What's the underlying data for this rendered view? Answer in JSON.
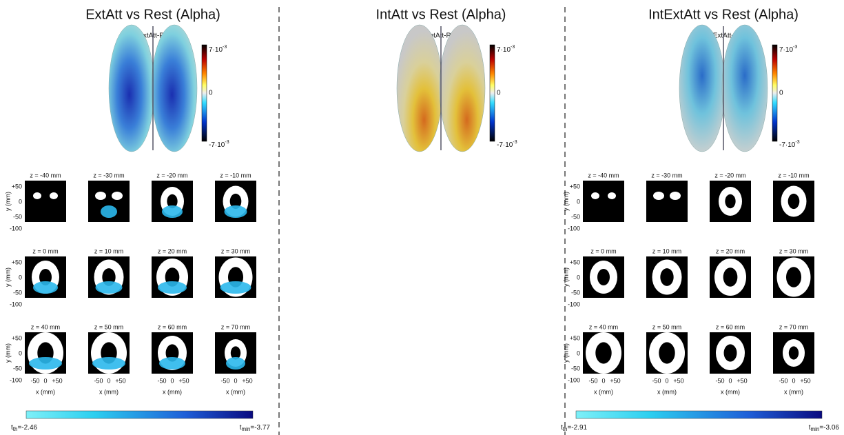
{
  "panels": [
    {
      "title": "ExtAtt vs Rest (Alpha)",
      "map_label": "Δ (ExtAtt-Rest)",
      "colorbar_ticks": [
        {
          "base": "7·10",
          "exp": "-3"
        },
        "0",
        {
          "base": "-7·10",
          "exp": "-3"
        }
      ],
      "slices": [
        "z = -40 mm",
        "z = -30 mm",
        "z = -20 mm",
        "z = -10 mm",
        "z = 0 mm",
        "z = 10 mm",
        "z = 20 mm",
        "z = 30 mm",
        "z = 40 mm",
        "z = 50 mm",
        "z = 60 mm",
        "z = 70 mm"
      ],
      "y_ticks": [
        "+50",
        "0",
        "-50",
        "-100"
      ],
      "y_label": "y (mm)",
      "x_ticks": [
        "-50",
        "0",
        "+50"
      ],
      "x_label": "x (mm)",
      "threshold": {
        "symbol": "t",
        "sub": "th",
        "text": "=-2.46"
      },
      "minimum": {
        "symbol": "t",
        "sub": "min",
        "text": "=-3.77"
      }
    },
    {
      "title": "IntAtt vs Rest (Alpha)",
      "map_label": "Δ (IntAtt-Rest)",
      "colorbar_ticks": [
        {
          "base": "7·10",
          "exp": "-3"
        },
        "0",
        {
          "base": "-7·10",
          "exp": "-3"
        }
      ]
    },
    {
      "title": "IntExtAtt vs Rest (Alpha)",
      "map_label": "Δ (IntExtAtt-Rest)",
      "colorbar_ticks": [
        {
          "base": "7·10",
          "exp": "-3"
        },
        "0",
        {
          "base": "-7·10",
          "exp": "-3"
        }
      ],
      "slices": [
        "z = -40 mm",
        "z = -30 mm",
        "z = -20 mm",
        "z = -10 mm",
        "z = 0 mm",
        "z = 10 mm",
        "z = 20 mm",
        "z = 30 mm",
        "z = 40 mm",
        "z = 50 mm",
        "z = 60 mm",
        "z = 70 mm"
      ],
      "y_ticks": [
        "+50",
        "0",
        "-50",
        "-100"
      ],
      "y_label": "y (mm)",
      "x_ticks": [
        "-50",
        "0",
        "+50"
      ],
      "x_label": "x (mm)",
      "threshold": {
        "symbol": "t",
        "sub": "th",
        "text": "=-2.91"
      },
      "minimum": {
        "symbol": "t",
        "sub": "min",
        "text": "=-3.06"
      }
    }
  ]
}
